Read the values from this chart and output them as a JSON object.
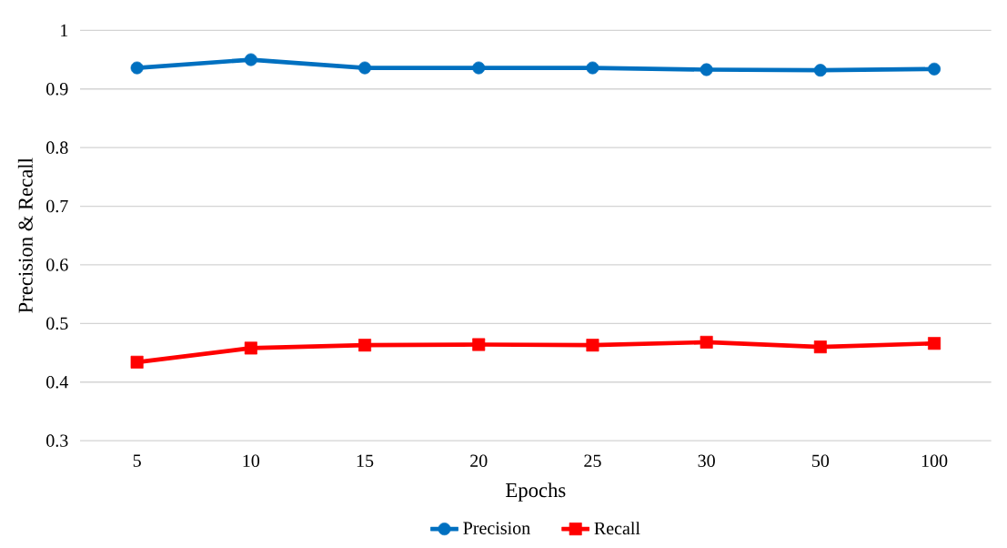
{
  "chart_data": {
    "type": "line",
    "xlabel": "Epochs",
    "ylabel": "Precision & Recall",
    "categories": [
      "5",
      "10",
      "15",
      "20",
      "25",
      "30",
      "50",
      "100"
    ],
    "series": [
      {
        "name": "Precision",
        "color": "#0070c0",
        "marker": "circle",
        "values": [
          0.936,
          0.95,
          0.936,
          0.936,
          0.936,
          0.933,
          0.932,
          0.934
        ]
      },
      {
        "name": "Recall",
        "color": "#ff0000",
        "marker": "square",
        "values": [
          0.434,
          0.458,
          0.463,
          0.464,
          0.463,
          0.468,
          0.46,
          0.466
        ]
      }
    ],
    "ylim": [
      0.3,
      1
    ],
    "yticks": [
      0.3,
      0.4,
      0.5,
      0.6,
      0.7,
      0.8,
      0.9,
      1
    ],
    "grid": "y",
    "legend": "bottom"
  }
}
